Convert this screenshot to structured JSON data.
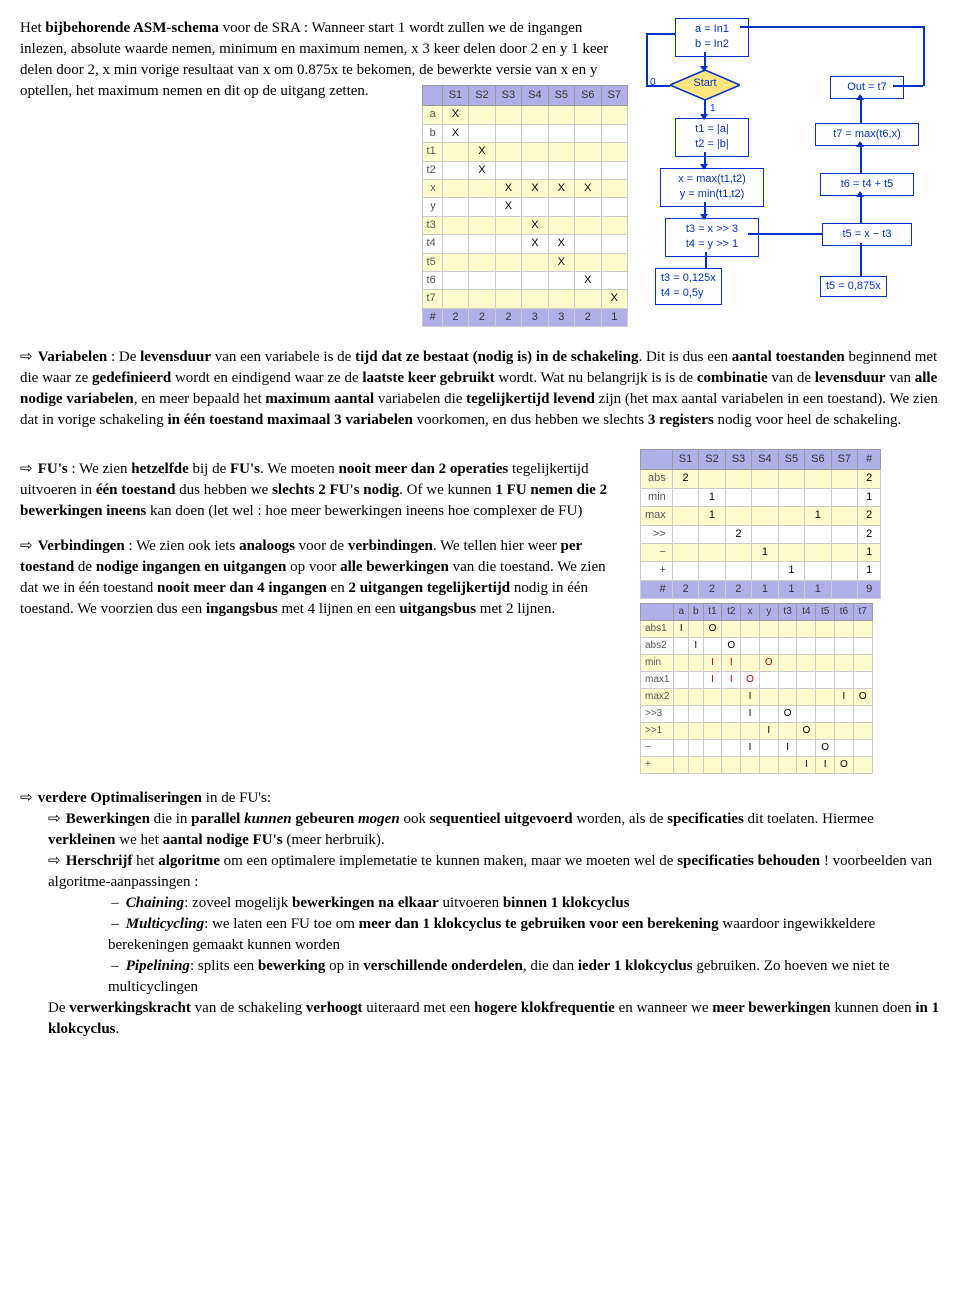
{
  "text": {
    "intro_part1": "Het ",
    "intro_b1": "bijbehorende ASM-schema",
    "intro_part2": " voor de SRA : Wanneer start 1 wordt zullen we de ingangen inlezen, absolute waarde nemen, minimum en maximum nemen, x 3 keer delen door 2 en y 1 keer delen door 2, x min vorige resultaat van x om 0.875x te bekomen, de bewerkte versie van x en y optellen, het maximum nemen en dit op de uitgang zetten.",
    "var_head": "Variabelen",
    "var_t1": " : De ",
    "var_b1": "levensduur",
    "var_t2": " van een variabele is de ",
    "var_b2": "tijd dat ze bestaat (nodig is) in de schakeling",
    "var_t3": ". Dit is dus een ",
    "var_b3": "aantal toestanden",
    "var_t4": " beginnend met die waar ze ",
    "var_b4": "gedefinieerd",
    "var_t5": " wordt en eindigend waar ze de ",
    "var_b5": "laatste keer gebruikt",
    "var_t6": " wordt. Wat nu belangrijk is is de ",
    "var_b6": "combinatie",
    "var_t7": " van de ",
    "var_b7": "levensduur",
    "var_t8": " van ",
    "var_b8": "alle nodige variabelen",
    "var_t9": ", en meer bepaald het ",
    "var_b9": "maximum aantal",
    "var_t10": " variabelen die ",
    "var_b10": "tegelijkertijd levend",
    "var_t11": " zijn (het max aantal variabelen in een toestand). We zien dat in vorige schakeling ",
    "var_b11": "in één toestand maximaal 3 variabelen",
    "var_t12": " voorkomen, en dus hebben we slechts ",
    "var_b12": "3 registers",
    "var_t13": " nodig voor heel de schakeling.",
    "fu_head": "FU's",
    "fu_t1": " : We zien ",
    "fu_b1": "hetzelfde",
    "fu_t2": " bij de ",
    "fu_b2": "FU's",
    "fu_t3": ". We moeten ",
    "fu_b3": "nooit meer dan 2 operaties",
    "fu_t4": " tegelijkertijd uitvoeren in ",
    "fu_b4": "één toestand",
    "fu_t5": " dus hebben we ",
    "fu_b5": "slechts 2 FU's nodig",
    "fu_t6": ". Of we kunnen ",
    "fu_b6": "1 FU nemen die 2 bewerkingen ineens",
    "fu_t7": " kan doen (let wel : hoe meer bewerkingen ineens hoe complexer de FU)",
    "vb_head": "Verbindingen",
    "vb_t1": " : We zien ook iets ",
    "vb_b1": "analoogs",
    "vb_t2": " voor de ",
    "vb_b2": "verbindingen",
    "vb_t3": ". We tellen hier weer ",
    "vb_b3": "per toestand",
    "vb_t4": " de ",
    "vb_b4": "nodige ingangen en uitgangen",
    "vb_t5": " op voor ",
    "vb_b5": "alle bewerkingen",
    "vb_t6": " van die toestand. We zien dat we in één toestand ",
    "vb_b6": "nooit meer dan 4 ingangen",
    "vb_t7": " en ",
    "vb_b7": "2 uitgangen tegelijkertijd",
    "vb_t8": " nodig in één toestand. We voorzien dus een ",
    "vb_b8": "ingangsbus",
    "vb_t9": " met 4 lijnen en een ",
    "vb_b9": "uitgangsbus",
    "vb_t10": " met 2 lijnen.",
    "opt_head": "verdere Optimaliseringen",
    "opt_t1": " in de FU's:",
    "opt1_b1": "Bewerkingen",
    "opt1_t1": " die in ",
    "opt1_b2": "parallel ",
    "opt1_i1": "kunnen",
    "opt1_t2": " gebeuren ",
    "opt1_i2": "mogen",
    "opt1_t3": " ook ",
    "opt1_b3": "sequentieel uitgevoerd",
    "opt1_t4": " worden, als de ",
    "opt1_b4": "specificaties",
    "opt1_t5": " dit toelaten. Hiermee ",
    "opt1_b5": "verkleinen",
    "opt1_t6": " we het ",
    "opt1_b6": "aantal nodige FU's",
    "opt1_t7": " (meer herbruik).",
    "opt2_b1": "Herschrijf",
    "opt2_t1": " het ",
    "opt2_b2": "algoritme",
    "opt2_t2": " om een optimalere implemetatie te kunnen maken, maar we moeten wel de ",
    "opt2_b3": "specificaties behouden",
    "opt2_t3": " ! voorbeelden van algoritme-aanpassingen :",
    "ch_i": "Chaining",
    "ch_t1": ": zoveel mogelijk ",
    "ch_b1": "bewerkingen na elkaar",
    "ch_t2": " uitvoeren ",
    "ch_b2": "binnen 1 klokcyclus",
    "mc_i": "Multicycling",
    "mc_t1": ": we laten een FU toe om ",
    "mc_b1": "meer dan 1 klokcyclus te gebruiken voor een berekening",
    "mc_t2": " waardoor ingewikkeldere berekeningen gemaakt kunnen worden",
    "pl_i": "Pipelining",
    "pl_t1": ": splits een ",
    "pl_b1": "bewerking",
    "pl_t2": " op in ",
    "pl_b2": "verschillende onderdelen",
    "pl_t3": ", die dan ",
    "pl_b3": "ieder 1 klokcyclus",
    "pl_t4": " gebruiken. Zo hoeven we niet te multicyclingen",
    "end_t1": "De ",
    "end_b1": "verwerkingskracht",
    "end_t2": " van de schakeling ",
    "end_b2": "verhoogt",
    "end_t3": " uiteraard met een ",
    "end_b3": "hogere klokfrequentie",
    "end_t4": " en wanneer we ",
    "end_b4": "meer bewerkingen",
    "end_t5": " kunnen doen ",
    "end_b5": "in 1 klokcyclus",
    "end_t6": "."
  },
  "flowchart": {
    "n1": "a = In1\nb = In2",
    "start": "Start",
    "n2": "t1 = |a|\nt2 = |b|",
    "n3": "x = max(t1,t2)\ny = min(t1,t2)",
    "n4": "t3 = x >> 3\nt4 = y >> 1",
    "out": "Out = t7",
    "r1": "t7 = max(t6,x)",
    "r2": "t6 = t4 + t5",
    "r3": "t5 = x − t3",
    "note1": "t3 = 0,125x\nt4 = 0,5y",
    "note2": "t5 = 0,875x",
    "lbl0": "0",
    "lbl1": "1"
  },
  "table1": {
    "headers": [
      "",
      "S1",
      "S2",
      "S3",
      "S4",
      "S5",
      "S6",
      "S7"
    ],
    "rows": [
      [
        "a",
        "X",
        "",
        "",
        "",
        "",
        "",
        ""
      ],
      [
        "b",
        "X",
        "",
        "",
        "",
        "",
        "",
        ""
      ],
      [
        "t1",
        "",
        "X",
        "",
        "",
        "",
        "",
        ""
      ],
      [
        "t2",
        "",
        "X",
        "",
        "",
        "",
        "",
        ""
      ],
      [
        "x",
        "",
        "",
        "X",
        "X",
        "X",
        "X",
        ""
      ],
      [
        "y",
        "",
        "",
        "X",
        "",
        "",
        "",
        ""
      ],
      [
        "t3",
        "",
        "",
        "",
        "X",
        "",
        "",
        ""
      ],
      [
        "t4",
        "",
        "",
        "",
        "X",
        "X",
        "",
        ""
      ],
      [
        "t5",
        "",
        "",
        "",
        "",
        "X",
        "",
        ""
      ],
      [
        "t6",
        "",
        "",
        "",
        "",
        "",
        "X",
        ""
      ],
      [
        "t7",
        "",
        "",
        "",
        "",
        "",
        "",
        "X"
      ]
    ],
    "hash": [
      "#",
      "2",
      "2",
      "2",
      "3",
      "3",
      "2",
      "1"
    ]
  },
  "table2": {
    "headers": [
      "",
      "S1",
      "S2",
      "S3",
      "S4",
      "S5",
      "S6",
      "S7",
      "#"
    ],
    "rows": [
      [
        "abs",
        "2",
        "",
        "",
        "",
        "",
        "",
        "",
        "2"
      ],
      [
        "min",
        "",
        "1",
        "",
        "",
        "",
        "",
        "",
        "1"
      ],
      [
        "max",
        "",
        "1",
        "",
        "",
        "",
        "1",
        "",
        "2"
      ],
      [
        ">>",
        "",
        "",
        "2",
        "",
        "",
        "",
        "",
        "2"
      ],
      [
        "−",
        "",
        "",
        "",
        "1",
        "",
        "",
        "",
        "1"
      ],
      [
        "+",
        "",
        "",
        "",
        "",
        "1",
        "",
        "",
        "1"
      ]
    ],
    "hash": [
      "#",
      "2",
      "2",
      "2",
      "1",
      "1",
      "1",
      "",
      "9"
    ]
  },
  "table3": {
    "headers": [
      "",
      "a",
      "b",
      "t1",
      "t2",
      "x",
      "y",
      "t3",
      "t4",
      "t5",
      "t6",
      "t7"
    ],
    "rows": [
      [
        "abs1",
        "I",
        "",
        "O",
        "",
        "",
        "",
        "",
        "",
        "",
        "",
        ""
      ],
      [
        "abs2",
        "",
        "I",
        "",
        "O",
        "",
        "",
        "",
        "",
        "",
        "",
        ""
      ],
      [
        "min",
        "",
        "",
        "I",
        "I",
        "",
        "O",
        "",
        "",
        "",
        "",
        ""
      ],
      [
        "max1",
        "",
        "",
        "I",
        "I",
        "O",
        "",
        "",
        "",
        "",
        "",
        ""
      ],
      [
        "max2",
        "",
        "",
        "",
        "",
        "I",
        "",
        "",
        "",
        "",
        "I",
        "O"
      ],
      [
        ">>3",
        "",
        "",
        "",
        "",
        "I",
        "",
        "O",
        "",
        "",
        "",
        ""
      ],
      [
        ">>1",
        "",
        "",
        "",
        "",
        "",
        "I",
        "",
        "O",
        "",
        "",
        ""
      ],
      [
        "−",
        "",
        "",
        "",
        "",
        "I",
        "",
        "I",
        "",
        "O",
        "",
        ""
      ],
      [
        "+",
        "",
        "",
        "",
        "",
        "",
        "",
        "",
        "I",
        "I",
        "O",
        ""
      ]
    ],
    "red_rows": [
      "min",
      "max1"
    ]
  },
  "colors": {
    "header_bg": "#b0b0e8",
    "row_even": "#fffbcc",
    "flowchart_blue": "#0033cc",
    "red": "#cc0000"
  }
}
